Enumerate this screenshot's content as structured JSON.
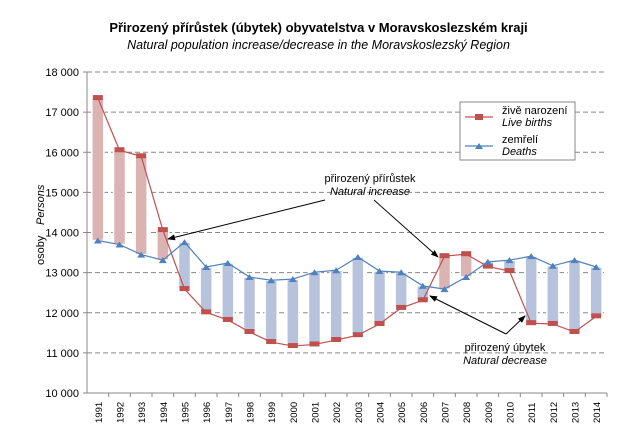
{
  "chart_data": {
    "type": "line",
    "title": "Přirozený přírůstek (úbytek) obyvatelstva v Moravskoslezském kraji",
    "subtitle": "Natural population increase/decrease in the Moravskoslezský Region",
    "ylabel": "osoby",
    "ylabel_en": "Persons",
    "ylim": [
      10000,
      18000
    ],
    "yticks": [
      "10 000",
      "11 000",
      "12 000",
      "13 000",
      "14 000",
      "15 000",
      "16 000",
      "17 000",
      "18 000"
    ],
    "grid": true,
    "legend_position": "top-right",
    "categories": [
      "1991",
      "1992",
      "1993",
      "1994",
      "1995",
      "1996",
      "1997",
      "1998",
      "1999",
      "2000",
      "2001",
      "2002",
      "2003",
      "2004",
      "2005",
      "2006",
      "2007",
      "2008",
      "2009",
      "2010",
      "2011",
      "2012",
      "2013",
      "2014"
    ],
    "series": [
      {
        "name": "živě narození",
        "name_en": "Live births",
        "color": "#c0504d",
        "values": [
          17350,
          16050,
          15900,
          14060,
          12590,
          12010,
          11820,
          11520,
          11270,
          11170,
          11210,
          11320,
          11440,
          11720,
          12120,
          12310,
          13410,
          13460,
          13150,
          13040,
          11740,
          11720,
          11520,
          11910
        ]
      },
      {
        "name": "zemřelí",
        "name_en": "Deaths",
        "color": "#4f81bd",
        "values": [
          13800,
          13700,
          13450,
          13310,
          13760,
          13140,
          13240,
          12890,
          12810,
          12840,
          13010,
          13060,
          13390,
          13040,
          13010,
          12670,
          12590,
          12890,
          13270,
          13310,
          13410,
          13170,
          13310,
          13140
        ]
      }
    ],
    "bar_colors": {
      "increase": "#dbb3b3",
      "decrease": "#b7c3dc"
    },
    "annotations": [
      {
        "text": "přirozený přírůstek",
        "text_en": "Natural increase"
      },
      {
        "text": "přirozený úbytek",
        "text_en": "Natural decrease"
      }
    ]
  }
}
